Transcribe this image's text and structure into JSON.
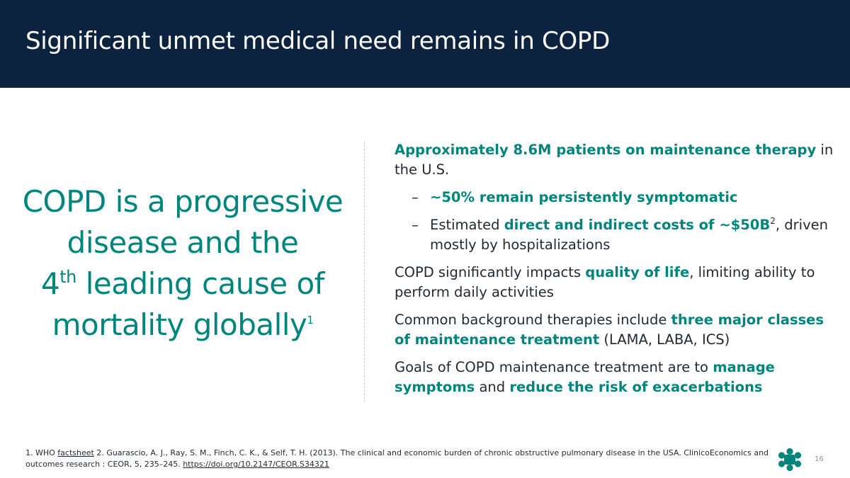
{
  "header": {
    "title": "Significant unmet medical need remains in COPD"
  },
  "claim": {
    "line1": "COPD is a progressive",
    "line2": "disease and the",
    "rank_number": "4",
    "rank_suffix": "th",
    "line3_rest": " leading cause of",
    "line4": "mortality globally",
    "line4_ref": "1"
  },
  "bullets": {
    "b1": {
      "hl1": "Approximately 8.6M patients on maintenance therapy",
      "text1": " in the U.S."
    },
    "s1": {
      "dash": "–",
      "hl1": "~50% remain persistently symptomatic"
    },
    "s2": {
      "dash": "–",
      "text1": "Estimated ",
      "hl1": "direct and indirect costs of ~$50B",
      "ref": "2",
      "text2": ", driven mostly by hospitalizations"
    },
    "b2": {
      "text1": "COPD significantly impacts ",
      "hl1": "quality of life",
      "text2": ", limiting ability to perform daily activities"
    },
    "b3": {
      "text1": "Common background therapies include ",
      "hl1": "three major classes of maintenance treatment",
      "text2": " (LAMA, LABA, ICS)"
    },
    "b4": {
      "text1": "Goals of COPD maintenance treatment are to ",
      "hl1": "manage symptoms",
      "text2": " and ",
      "hl2": "reduce the risk of exacerbations"
    }
  },
  "footnote": {
    "prefix": "1. WHO ",
    "link1": "factsheet",
    "body": "  2. Guarascio, A. J., Ray, S. M., Finch, C. K., & Self, T. H. (2013). The clinical and economic burden of chronic obstructive pulmonary disease in the USA. ClinicoEconomics and outcomes research : CEOR, 5, 235–245. ",
    "link2": "https://doi.org/10.2147/CEOR.S34321"
  },
  "page_number": "16",
  "colors": {
    "navy": "#0c2340",
    "teal": "#00857c"
  },
  "icons": {
    "logo": "company-logo-icon"
  }
}
